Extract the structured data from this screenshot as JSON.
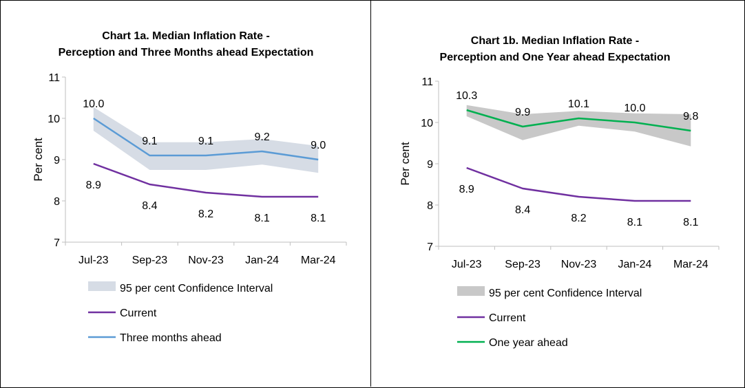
{
  "chart_data": [
    {
      "type": "line",
      "title": "Chart 1a. Median Inflation Rate -",
      "subtitle": "Perception and Three Months ahead Expectation",
      "xlabel": "",
      "ylabel": "Per cent",
      "ylim": [
        7,
        11
      ],
      "yticks": [
        "7",
        "8",
        "9",
        "10",
        "11"
      ],
      "categories": [
        "Jul-23",
        "Sep-23",
        "Nov-23",
        "Jan-24",
        "Mar-24"
      ],
      "band": {
        "name": "95 per cent Confidence Interval",
        "lower": [
          9.7,
          8.75,
          8.75,
          8.88,
          8.68
        ],
        "upper": [
          10.27,
          9.42,
          9.42,
          9.5,
          9.33
        ],
        "color": "#d6dce5"
      },
      "series": [
        {
          "name": "Current",
          "values": [
            8.9,
            8.4,
            8.2,
            8.1,
            8.1
          ],
          "labels": [
            "8.9",
            "8.4",
            "8.2",
            "8.1",
            "8.1"
          ],
          "color": "#7030a0"
        },
        {
          "name": "Three months ahead",
          "values": [
            10.0,
            9.1,
            9.1,
            9.2,
            9.0
          ],
          "labels": [
            "10.0",
            "9.1",
            "9.1",
            "9.2",
            "9.0"
          ],
          "color": "#5b9bd5"
        }
      ]
    },
    {
      "type": "line",
      "title": "Chart 1b. Median Inflation Rate -",
      "subtitle": "Perception and One Year ahead Expectation",
      "xlabel": "",
      "ylabel": "Per cent",
      "ylim": [
        7,
        11
      ],
      "yticks": [
        "7",
        "8",
        "9",
        "10",
        "11"
      ],
      "categories": [
        "Jul-23",
        "Sep-23",
        "Nov-23",
        "Jan-24",
        "Mar-24"
      ],
      "band": {
        "name": "95 per cent Confidence Interval",
        "lower": [
          10.15,
          9.57,
          9.92,
          9.78,
          9.42
        ],
        "upper": [
          10.42,
          10.2,
          10.28,
          10.22,
          10.2
        ],
        "color": "#c8c8c8"
      },
      "series": [
        {
          "name": "Current",
          "values": [
            8.9,
            8.4,
            8.2,
            8.1,
            8.1
          ],
          "labels": [
            "8.9",
            "8.4",
            "8.2",
            "8.1",
            "8.1"
          ],
          "color": "#7030a0"
        },
        {
          "name": "One year ahead",
          "values": [
            10.3,
            9.9,
            10.1,
            10.0,
            9.8
          ],
          "labels": [
            "10.3",
            "9.9",
            "10.1",
            "10.0",
            "9.8"
          ],
          "color": "#00b050"
        }
      ]
    }
  ]
}
